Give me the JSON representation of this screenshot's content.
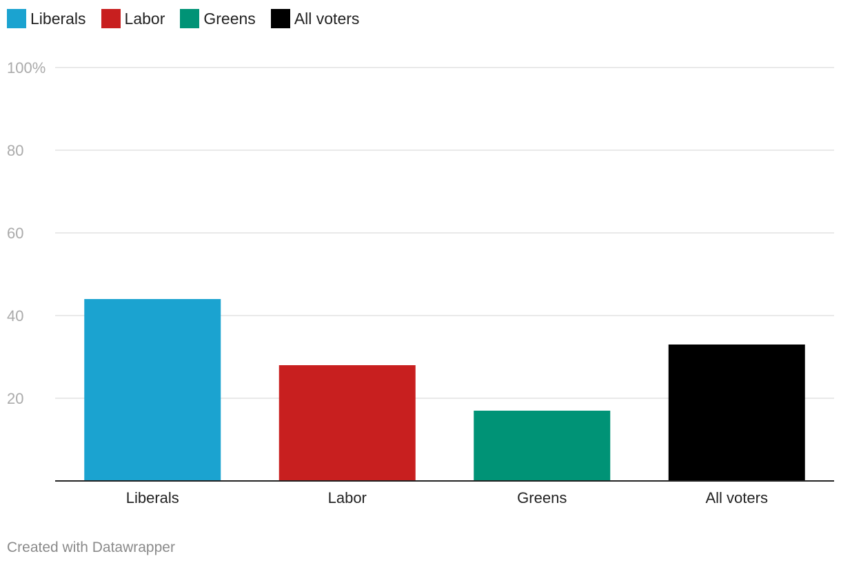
{
  "legend": [
    {
      "label": "Liberals",
      "color": "#1ba3d0"
    },
    {
      "label": "Labor",
      "color": "#c81f1f"
    },
    {
      "label": "Greens",
      "color": "#009376"
    },
    {
      "label": "All voters",
      "color": "#000000"
    }
  ],
  "credit": "Created with Datawrapper",
  "chart_data": {
    "type": "bar",
    "title": "",
    "xlabel": "",
    "ylabel": "",
    "categories": [
      "Liberals",
      "Labor",
      "Greens",
      "All voters"
    ],
    "values": [
      44,
      28,
      17,
      33
    ],
    "colors": [
      "#1ba3d0",
      "#c81f1f",
      "#009376",
      "#000000"
    ],
    "ylim": [
      0,
      100
    ],
    "yticks": [
      20,
      40,
      60,
      80,
      100
    ],
    "ytick_labels": [
      "20",
      "40",
      "60",
      "80",
      "100%"
    ],
    "grid": true,
    "legend_position": "top-left"
  }
}
